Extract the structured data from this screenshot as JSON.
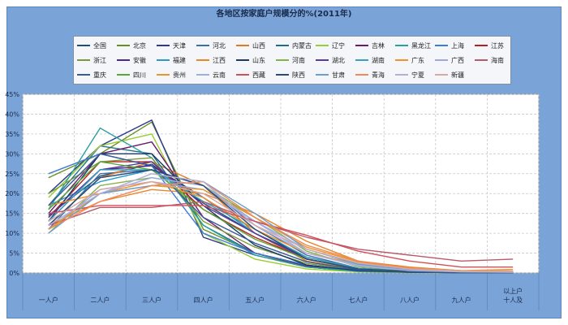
{
  "chart_data": {
    "type": "line",
    "title": "各地区按家庭户规模分的%(2011年)",
    "xlabel": "",
    "ylabel": "",
    "ylim": [
      0,
      45
    ],
    "yticks": [
      "0%",
      "5%",
      "10%",
      "15%",
      "20%",
      "25%",
      "30%",
      "35%",
      "40%",
      "45%"
    ],
    "grid": true,
    "legend_position": "top",
    "categories": [
      "一人户",
      "二人户",
      "三人户",
      "四人户",
      "五人户",
      "六人户",
      "七人户",
      "八人户",
      "九人户",
      "十人及以上户"
    ],
    "category_lines": [
      [
        "一人户"
      ],
      [
        "二人户"
      ],
      [
        "三人户"
      ],
      [
        "四人户"
      ],
      [
        "五人户"
      ],
      [
        "六人户"
      ],
      [
        "七人户"
      ],
      [
        "八人户"
      ],
      [
        "九人户"
      ],
      [
        "以上户",
        "十人及"
      ]
    ],
    "series": [
      {
        "name": "全国",
        "color": "#1f4e79",
        "values": [
          14.5,
          24.4,
          27.4,
          17.6,
          10.0,
          4.0,
          1.2,
          0.5,
          0.2,
          0.2
        ]
      },
      {
        "name": "北京",
        "color": "#6b8e23",
        "values": [
          24.0,
          30.0,
          38.0,
          11.0,
          5.0,
          1.5,
          0.4,
          0.2,
          0.1,
          0.1
        ]
      },
      {
        "name": "天津",
        "color": "#2e3a8c",
        "values": [
          20.0,
          32.0,
          38.5,
          9.0,
          4.5,
          1.5,
          0.4,
          0.2,
          0.1,
          0.1
        ]
      },
      {
        "name": "河北",
        "color": "#3a6fa8",
        "values": [
          11.0,
          25.0,
          26.0,
          22.0,
          12.0,
          4.5,
          1.2,
          0.4,
          0.2,
          0.2
        ]
      },
      {
        "name": "山西",
        "color": "#e07a1f",
        "values": [
          12.0,
          24.0,
          28.0,
          22.0,
          10.0,
          3.0,
          0.8,
          0.3,
          0.1,
          0.1
        ]
      },
      {
        "name": "内蒙古",
        "color": "#1f6f8b",
        "values": [
          17.0,
          32.0,
          30.0,
          12.0,
          5.0,
          2.0,
          0.6,
          0.2,
          0.1,
          0.1
        ]
      },
      {
        "name": "辽宁",
        "color": "#9acd32",
        "values": [
          19.0,
          32.0,
          35.0,
          10.0,
          3.5,
          1.0,
          0.3,
          0.1,
          0.1,
          0.1
        ]
      },
      {
        "name": "吉林",
        "color": "#6a1b6a",
        "values": [
          15.0,
          30.0,
          33.0,
          14.0,
          5.0,
          1.8,
          0.5,
          0.2,
          0.1,
          0.1
        ]
      },
      {
        "name": "黑龙江",
        "color": "#2aa0a0",
        "values": [
          16.0,
          36.5,
          29.0,
          12.0,
          4.5,
          1.5,
          0.4,
          0.2,
          0.1,
          0.1
        ]
      },
      {
        "name": "上海",
        "color": "#3b7dd8",
        "values": [
          25.0,
          30.0,
          27.0,
          10.0,
          5.0,
          2.0,
          0.5,
          0.2,
          0.1,
          0.1
        ]
      },
      {
        "name": "江苏",
        "color": "#b22222",
        "values": [
          14.0,
          28.0,
          28.0,
          16.0,
          9.0,
          3.5,
          1.0,
          0.4,
          0.2,
          0.2
        ]
      },
      {
        "name": "浙江",
        "color": "#7a9a3a",
        "values": [
          20.0,
          28.0,
          29.0,
          13.0,
          6.5,
          2.4,
          0.8,
          0.3,
          0.1,
          0.1
        ]
      },
      {
        "name": "安徽",
        "color": "#4b2a8a",
        "values": [
          13.0,
          26.0,
          27.0,
          19.0,
          10.0,
          3.6,
          1.0,
          0.4,
          0.2,
          0.2
        ]
      },
      {
        "name": "福建",
        "color": "#2b9ac9",
        "values": [
          17.0,
          23.0,
          26.0,
          19.0,
          10.0,
          3.5,
          1.2,
          0.5,
          0.2,
          0.2
        ]
      },
      {
        "name": "江西",
        "color": "#e8872a",
        "values": [
          12.0,
          18.0,
          21.0,
          20.0,
          15.0,
          8.0,
          3.0,
          1.5,
          0.6,
          0.5
        ]
      },
      {
        "name": "山东",
        "color": "#1b3a6a",
        "values": [
          13.0,
          30.0,
          30.0,
          17.0,
          7.0,
          2.0,
          0.6,
          0.2,
          0.1,
          0.1
        ]
      },
      {
        "name": "河南",
        "color": "#88b04b",
        "values": [
          10.0,
          22.0,
          24.0,
          22.0,
          14.0,
          5.5,
          1.6,
          0.6,
          0.3,
          0.2
        ]
      },
      {
        "name": "湖北",
        "color": "#5a3a9a",
        "values": [
          14.0,
          26.0,
          28.0,
          17.0,
          10.0,
          3.5,
          1.0,
          0.4,
          0.2,
          0.2
        ]
      },
      {
        "name": "湖南",
        "color": "#3aa0b8",
        "values": [
          13.0,
          26.0,
          26.0,
          18.0,
          11.0,
          4.0,
          1.2,
          0.5,
          0.2,
          0.2
        ]
      },
      {
        "name": "广东",
        "color": "#f0922a",
        "values": [
          17.0,
          20.0,
          23.0,
          19.0,
          11.0,
          5.0,
          2.3,
          1.2,
          0.6,
          0.9
        ]
      },
      {
        "name": "广西",
        "color": "#a0a8d8",
        "values": [
          11.0,
          21.0,
          23.0,
          21.0,
          13.0,
          6.0,
          2.5,
          1.0,
          0.5,
          0.4
        ]
      },
      {
        "name": "海南",
        "color": "#b85a6a",
        "values": [
          12.0,
          16.5,
          16.5,
          18.0,
          13.0,
          9.0,
          6.0,
          4.5,
          3.0,
          3.5
        ]
      },
      {
        "name": "重庆",
        "color": "#3a5a9a",
        "values": [
          17.0,
          30.0,
          27.0,
          14.0,
          7.5,
          2.8,
          0.8,
          0.3,
          0.1,
          0.1
        ]
      },
      {
        "name": "四川",
        "color": "#5aa83a",
        "values": [
          16.0,
          28.0,
          26.0,
          16.0,
          8.5,
          3.5,
          1.0,
          0.4,
          0.2,
          0.2
        ]
      },
      {
        "name": "贵州",
        "color": "#e8962a",
        "values": [
          11.0,
          20.0,
          22.0,
          21.0,
          14.0,
          6.5,
          2.8,
          1.2,
          0.6,
          0.5
        ]
      },
      {
        "name": "云南",
        "color": "#9ab0e0",
        "values": [
          12.0,
          20.0,
          24.0,
          22.0,
          13.0,
          5.0,
          2.0,
          0.9,
          0.4,
          0.3
        ]
      },
      {
        "name": "西藏",
        "color": "#d0505a",
        "values": [
          15.0,
          17.0,
          17.0,
          17.0,
          13.0,
          9.5,
          5.5,
          3.0,
          1.5,
          1.5
        ]
      },
      {
        "name": "陕西",
        "color": "#2a4a7a",
        "values": [
          12.0,
          24.0,
          26.0,
          22.0,
          11.0,
          3.5,
          1.0,
          0.4,
          0.2,
          0.2
        ]
      },
      {
        "name": "甘肃",
        "color": "#6aa0d0",
        "values": [
          10.0,
          20.0,
          22.0,
          23.0,
          15.0,
          6.0,
          2.2,
          0.8,
          0.3,
          0.2
        ]
      },
      {
        "name": "青海",
        "color": "#f08a5a",
        "values": [
          11.0,
          18.0,
          22.0,
          23.0,
          14.0,
          7.0,
          3.0,
          1.2,
          0.5,
          0.4
        ]
      },
      {
        "name": "宁夏",
        "color": "#b0b0d8",
        "values": [
          12.0,
          20.0,
          25.0,
          23.0,
          12.0,
          5.0,
          1.8,
          0.6,
          0.3,
          0.2
        ]
      },
      {
        "name": "新疆",
        "color": "#d8a8a8",
        "values": [
          13.0,
          21.0,
          23.0,
          20.0,
          12.0,
          6.0,
          2.5,
          1.0,
          0.5,
          0.4
        ]
      }
    ]
  }
}
